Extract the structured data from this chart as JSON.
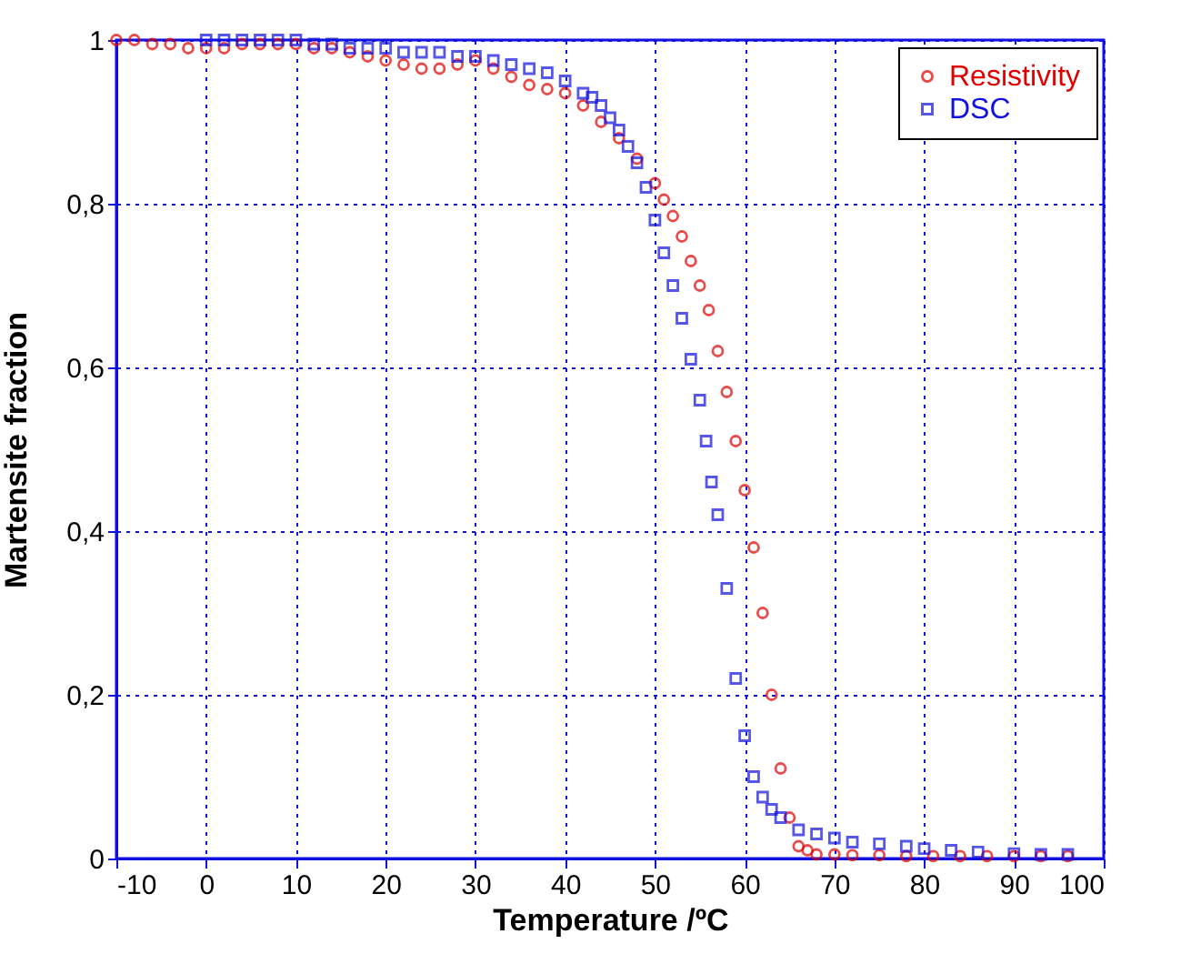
{
  "chart_data": {
    "type": "scatter",
    "xlabel": "Temperature /ºC",
    "ylabel": "Martensite fraction",
    "xlim": [
      -10,
      100
    ],
    "xticks": [
      -10,
      0,
      10,
      20,
      30,
      40,
      50,
      60,
      70,
      80,
      90,
      100
    ],
    "ylim": [
      0,
      1
    ],
    "yticks": [
      0,
      {
        "value": 0.2,
        "label": "0,2"
      },
      {
        "value": 0.4,
        "label": "0,4"
      },
      {
        "value": 0.6,
        "label": "0,6"
      },
      {
        "value": 0.8,
        "label": "0,8"
      },
      1
    ],
    "grid": true,
    "legend": "top right",
    "series": [
      {
        "name": "Resistivity",
        "color": "#e00000",
        "marker": "circle",
        "x": [
          -10,
          -8,
          -6,
          -4,
          -2,
          0,
          2,
          4,
          6,
          8,
          10,
          12,
          14,
          16,
          18,
          20,
          22,
          24,
          26,
          28,
          30,
          32,
          34,
          36,
          38,
          40,
          42,
          44,
          46,
          48,
          50,
          51,
          52,
          53,
          54,
          55,
          56,
          57,
          58,
          59,
          60,
          61,
          62,
          63,
          64,
          65,
          66,
          67,
          68,
          70,
          72,
          75,
          78,
          81,
          84,
          87,
          90,
          93,
          96
        ],
        "values": [
          1,
          1,
          0.995,
          0.995,
          0.99,
          0.99,
          0.99,
          0.995,
          0.995,
          0.995,
          0.995,
          0.99,
          0.99,
          0.985,
          0.98,
          0.975,
          0.97,
          0.965,
          0.965,
          0.97,
          0.975,
          0.965,
          0.955,
          0.945,
          0.94,
          0.935,
          0.92,
          0.9,
          0.88,
          0.855,
          0.825,
          0.805,
          0.785,
          0.76,
          0.73,
          0.7,
          0.67,
          0.62,
          0.57,
          0.51,
          0.45,
          0.38,
          0.3,
          0.2,
          0.11,
          0.05,
          0.015,
          0.01,
          0.005,
          0.005,
          0.004,
          0.004,
          0.003,
          0.003,
          0.003,
          0.003,
          0.003,
          0.003,
          0.003
        ]
      },
      {
        "name": "DSC",
        "color": "#1010e0",
        "marker": "square",
        "x": [
          0,
          2,
          4,
          6,
          8,
          10,
          12,
          14,
          16,
          18,
          20,
          22,
          24,
          26,
          28,
          30,
          32,
          34,
          36,
          38,
          40,
          42,
          43,
          44,
          45,
          46,
          47,
          48,
          49,
          50,
          51,
          52,
          53,
          54,
          55,
          55.7,
          56.3,
          57,
          58,
          59,
          60,
          61,
          62,
          63,
          64,
          66,
          68,
          70,
          72,
          75,
          78,
          80,
          83,
          86,
          90,
          93,
          96
        ],
        "values": [
          1,
          1,
          1,
          1,
          1,
          1,
          0.995,
          0.995,
          0.99,
          0.99,
          0.99,
          0.985,
          0.985,
          0.985,
          0.98,
          0.98,
          0.975,
          0.97,
          0.965,
          0.96,
          0.95,
          0.935,
          0.93,
          0.92,
          0.905,
          0.89,
          0.87,
          0.85,
          0.82,
          0.78,
          0.74,
          0.7,
          0.66,
          0.61,
          0.56,
          0.51,
          0.46,
          0.42,
          0.33,
          0.22,
          0.15,
          0.1,
          0.075,
          0.06,
          0.05,
          0.035,
          0.03,
          0.025,
          0.02,
          0.018,
          0.015,
          0.012,
          0.01,
          0.008,
          0.006,
          0.005,
          0.005
        ]
      }
    ]
  }
}
